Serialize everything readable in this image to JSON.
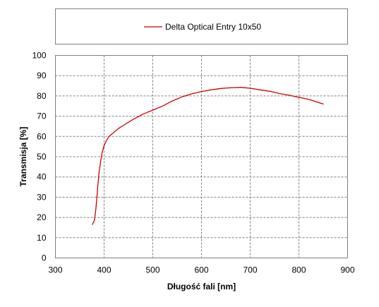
{
  "chart_data": {
    "type": "line",
    "title": "",
    "xlabel": "Długość fali [nm]",
    "ylabel": "Transmisja [%]",
    "xlim": [
      300,
      900
    ],
    "ylim": [
      0,
      100
    ],
    "x_ticks": [
      300,
      400,
      500,
      600,
      700,
      800,
      900
    ],
    "y_ticks": [
      0,
      10,
      20,
      30,
      40,
      50,
      60,
      70,
      80,
      90,
      100
    ],
    "grid": true,
    "legend": {
      "placement": "top"
    },
    "series": [
      {
        "name": "Delta Optical Entry 10x50",
        "color": "#cc0000",
        "x": [
          376,
          380,
          383,
          386,
          388,
          390,
          393,
          396,
          400,
          405,
          410,
          420,
          430,
          440,
          450,
          460,
          480,
          500,
          520,
          540,
          560,
          580,
          600,
          620,
          640,
          660,
          680,
          700,
          720,
          740,
          760,
          780,
          800,
          820,
          840,
          850
        ],
        "y": [
          16.5,
          18.5,
          24,
          32,
          38,
          43,
          48,
          52,
          55.5,
          58,
          60,
          62,
          64,
          65.5,
          67,
          68.5,
          71,
          73,
          75,
          77.5,
          79.5,
          81,
          82.2,
          83,
          83.7,
          84,
          84.2,
          83.8,
          83,
          82.3,
          81.2,
          80.3,
          79.3,
          78.3,
          76.8,
          76
        ]
      }
    ]
  }
}
